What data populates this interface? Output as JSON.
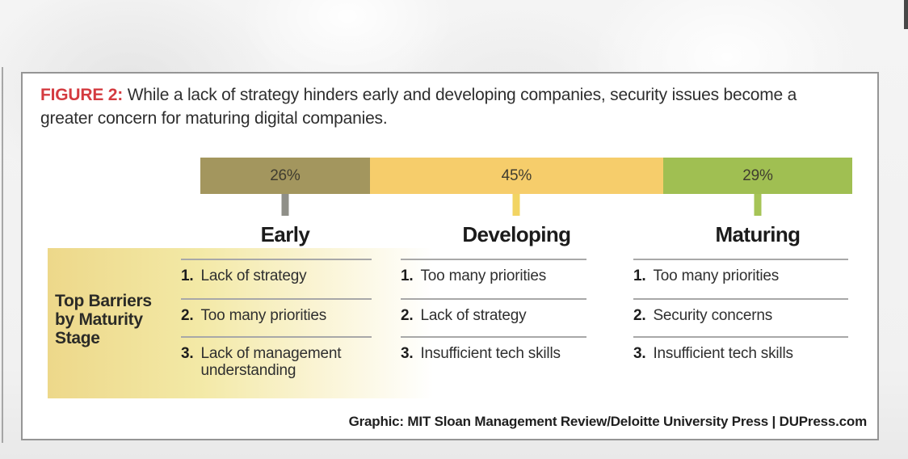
{
  "figure": {
    "label": "FIGURE 2:",
    "title": "While a lack of strategy hinders early and developing companies, security issues become a greater concern for maturing digital companies.",
    "credit": "Graphic: MIT Sloan Management Review/Deloitte University Press | DUPress.com"
  },
  "chart_data": {
    "type": "bar",
    "variant": "horizontal-stacked-percentage",
    "title": "FIGURE 2: While a lack of strategy hinders early and developing companies, security issues become a greater concern for maturing digital companies.",
    "categories": [
      "Early",
      "Developing",
      "Maturing"
    ],
    "values": [
      26,
      45,
      29
    ],
    "value_labels": [
      "26%",
      "45%",
      "29%"
    ],
    "segment_colors": [
      "#a3965e",
      "#f6cd6b",
      "#a0bf52"
    ],
    "tick_colors": [
      "#8f8f88",
      "#f2d463",
      "#a6c457"
    ],
    "xlim": [
      0,
      100
    ],
    "grid": false,
    "legend": "none",
    "table": {
      "row_header": "Top Barriers by Maturity Stage",
      "ranks": [
        "1.",
        "2.",
        "3."
      ],
      "columns": [
        {
          "stage": "Early",
          "items": [
            "Lack of strategy",
            "Too many priorities",
            "Lack of management understanding"
          ]
        },
        {
          "stage": "Developing",
          "items": [
            "Too many priorities",
            "Lack of strategy",
            "Insufficient tech skills"
          ]
        },
        {
          "stage": "Maturing",
          "items": [
            "Too many priorities",
            "Security concerns",
            "Insufficient tech skills"
          ]
        }
      ]
    },
    "source": "Graphic: MIT Sloan Management Review/Deloitte University Press | DUPress.com"
  },
  "colors": {
    "figure_label_red": "#d43b40",
    "panel_border": "#959595",
    "separator_line": "#a8a8a8",
    "heading_box_start": "#edd88a",
    "heading_box_mid": "#f3e9a6"
  }
}
